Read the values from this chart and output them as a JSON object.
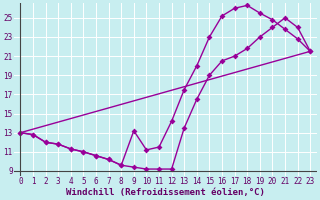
{
  "xlabel": "Windchill (Refroidissement éolien,°C)",
  "ylabel": "",
  "bg_color": "#c8eef0",
  "grid_color": "#ffffff",
  "line_color": "#990099",
  "xlim": [
    -0.5,
    23.5
  ],
  "ylim": [
    8.5,
    26.5
  ],
  "xticks": [
    0,
    1,
    2,
    3,
    4,
    5,
    6,
    7,
    8,
    9,
    10,
    11,
    12,
    13,
    14,
    15,
    16,
    17,
    18,
    19,
    20,
    21,
    22,
    23
  ],
  "yticks": [
    9,
    11,
    13,
    15,
    17,
    19,
    21,
    23,
    25
  ],
  "line1_x": [
    0,
    1,
    2,
    3,
    4,
    5,
    6,
    7,
    8,
    9,
    10,
    11,
    12,
    13,
    14,
    15,
    16,
    17,
    18,
    19,
    20,
    21,
    22,
    23
  ],
  "line1_y": [
    13,
    12.8,
    12.0,
    11.8,
    11.3,
    11.0,
    10.6,
    10.2,
    9.6,
    13.2,
    11.2,
    11.5,
    14.2,
    17.5,
    20.0,
    23.0,
    25.2,
    26.0,
    26.3,
    25.5,
    24.8,
    23.8,
    22.8,
    21.5
  ],
  "line2_x": [
    0,
    1,
    2,
    3,
    4,
    5,
    6,
    7,
    8,
    9,
    10,
    11,
    12,
    13,
    14,
    15,
    16,
    17,
    18,
    19,
    20,
    21,
    22,
    23
  ],
  "line2_y": [
    13,
    12.8,
    12.0,
    11.8,
    11.3,
    11.0,
    10.6,
    10.2,
    9.6,
    9.4,
    9.2,
    9.2,
    9.2,
    13.5,
    16.5,
    19.0,
    20.5,
    21.0,
    21.8,
    23.0,
    24.0,
    25.0,
    24.0,
    21.5
  ],
  "line3_x": [
    0,
    23
  ],
  "line3_y": [
    13.0,
    21.5
  ],
  "marker_size": 3.0,
  "line_width": 1.0,
  "font_size_label": 6.5,
  "font_size_tick": 5.5
}
